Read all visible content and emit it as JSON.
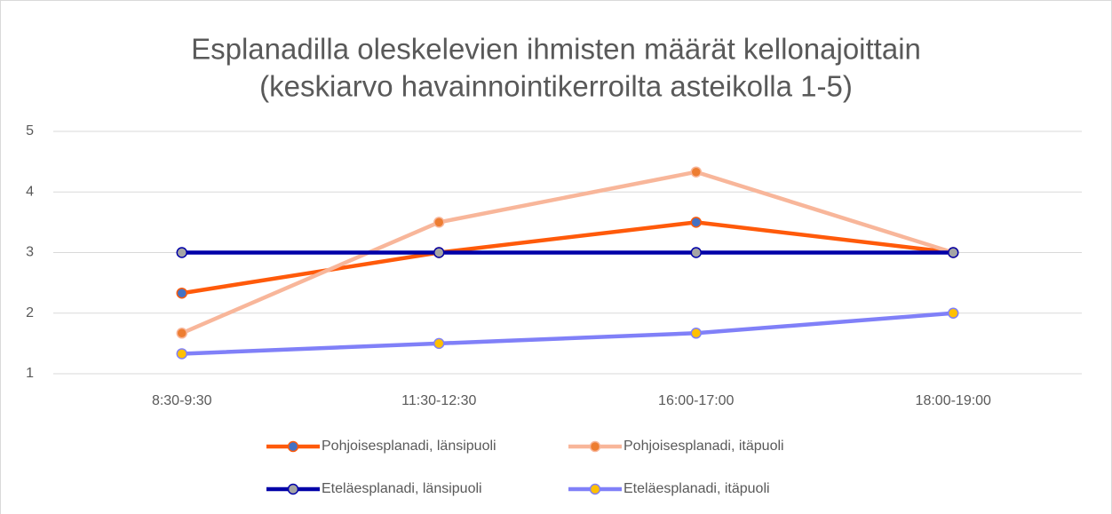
{
  "chart_data": {
    "type": "line",
    "title": [
      "Esplanadilla oleskelevien ihmisten määrät kellonajoittain",
      "(keskiarvo havainnointikerroilta asteikolla 1-5)"
    ],
    "categories": [
      "8:30-9:30",
      "11:30-12:30",
      "16:00-17:00",
      "18:00-19:00"
    ],
    "series": [
      {
        "name": "Pohjoisesplanadi, länsipuoli",
        "color": "#ff5a0a",
        "marker_color": "#4472c4",
        "values": [
          2.33,
          3,
          3.5,
          3
        ]
      },
      {
        "name": "Pohjoisesplanadi, itäpuoli",
        "color": "#f8b69a",
        "marker_color": "#ed7d31",
        "values": [
          1.67,
          3.5,
          4.33,
          3
        ]
      },
      {
        "name": "Eteläesplanadi, länsipuoli",
        "color": "#0000a8",
        "marker_color": "#a5a5a5",
        "values": [
          3,
          3,
          3,
          3
        ]
      },
      {
        "name": "Eteläesplanadi, itäpuoli",
        "color": "#8080f8",
        "marker_color": "#ffc000",
        "values": [
          1.33,
          1.5,
          1.67,
          2
        ]
      }
    ],
    "ylim": [
      1,
      5
    ],
    "yticks": [
      1,
      2,
      3,
      4,
      5
    ],
    "grid": true,
    "legend": "bottom"
  }
}
